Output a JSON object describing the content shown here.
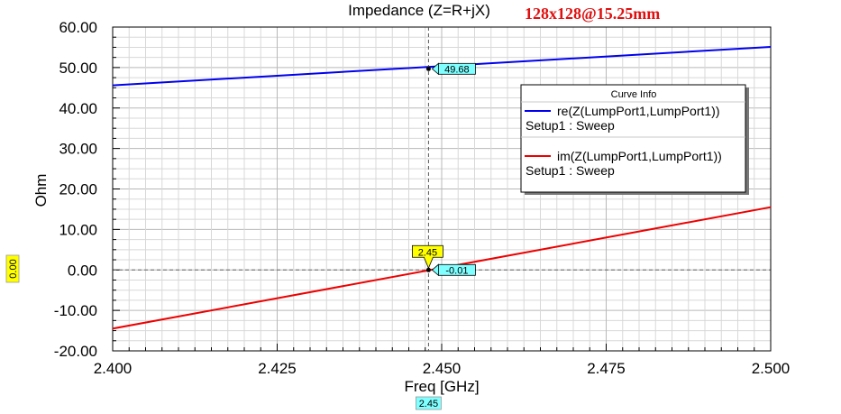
{
  "chart_data": {
    "type": "line",
    "title": "Impedance (Z=R+jX)",
    "annotation": "128x128@15.25mm",
    "xlabel": "Freq [GHz]",
    "ylabel": "Ohm",
    "xlim": [
      2.4,
      2.5
    ],
    "ylim": [
      -20,
      60
    ],
    "xticks": [
      "2.400",
      "2.425",
      "2.450",
      "2.475",
      "2.500"
    ],
    "yticks": [
      "60.00",
      "50.00",
      "40.00",
      "30.00",
      "20.00",
      "10.00",
      "0.00",
      "-10.00",
      "-20.00"
    ],
    "grid": true,
    "series": [
      {
        "name": "re(Z(LumpPort1,LumpPort1))",
        "setup": "Setup1 : Sweep",
        "color": "#0000ee",
        "x": [
          2.4,
          2.5
        ],
        "y": [
          45.6,
          55.1
        ]
      },
      {
        "name": "im(Z(LumpPort1,LumpPort1))",
        "setup": "Setup1 : Sweep",
        "color": "#ee0000",
        "x": [
          2.4,
          2.5
        ],
        "y": [
          -14.5,
          15.5
        ]
      }
    ],
    "legend": {
      "title": "Curve Info",
      "position": "top-right"
    },
    "markers": {
      "x_marker": 2.448,
      "x_label": "2.45",
      "x_axis_readout": "2.45",
      "y_axis_readout": "0.00",
      "values": [
        {
          "series": 0,
          "y": 49.68,
          "label": "49.68"
        },
        {
          "series": 1,
          "y": -0.01,
          "label": "-0.01"
        }
      ]
    }
  }
}
